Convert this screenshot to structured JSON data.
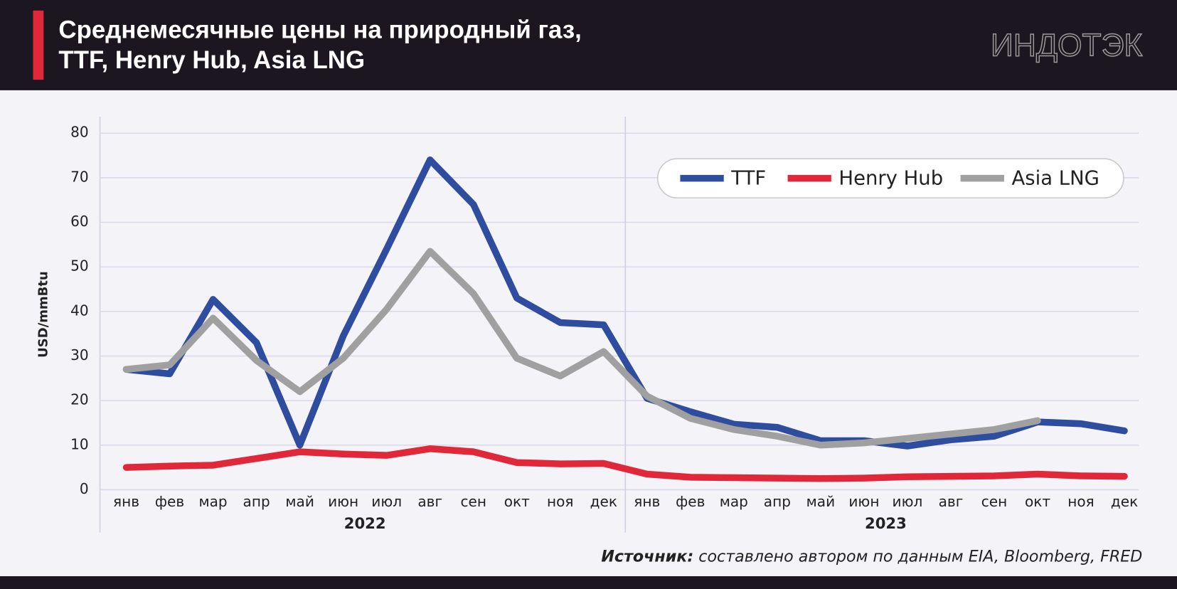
{
  "chart_data": {
    "type": "line",
    "title_lines": [
      "Среднемесячные цены на природный газ,",
      "TTF, Henry Hub, Asia LNG"
    ],
    "logo": "ИНДОТЭК",
    "y_label": "USD/mmBtu",
    "categories": [
      "янв",
      "фев",
      "мар",
      "апр",
      "май",
      "июн",
      "июл",
      "авг",
      "сен",
      "окт",
      "ноя",
      "дек",
      "янв",
      "фев",
      "мар",
      "апр",
      "май",
      "июн",
      "июл",
      "авг",
      "сен",
      "окт",
      "ноя",
      "дек"
    ],
    "groups": [
      "2022",
      "2023"
    ],
    "series": [
      {
        "name": "TTF",
        "color": "#2e4d9e",
        "values": [
          27,
          26,
          42.7,
          33,
          10,
          34.5,
          54,
          74,
          64,
          43,
          37.5,
          37,
          20.5,
          17.5,
          14.7,
          14,
          11,
          11,
          9.8,
          11.2,
          12,
          15.2,
          14.8,
          13.2
        ]
      },
      {
        "name": "Henry Hub",
        "color": "#e0283a",
        "values": [
          5,
          5.3,
          5.5,
          7,
          8.5,
          8,
          7.7,
          9.2,
          8.5,
          6.1,
          5.8,
          5.9,
          3.5,
          2.8,
          2.7,
          2.6,
          2.5,
          2.6,
          2.9,
          3,
          3.1,
          3.5,
          3.1,
          3.0
        ]
      },
      {
        "name": "Asia LNG",
        "color": "#a0a0a0",
        "values": [
          27,
          28,
          38.5,
          29,
          22,
          29.5,
          40.5,
          53.5,
          44,
          29.5,
          25.5,
          31,
          21,
          16,
          13.5,
          12,
          10,
          10.5,
          11.5,
          12.5,
          13.5,
          15.5,
          null,
          null
        ]
      }
    ],
    "ylim": [
      0,
      80
    ],
    "yticks": [
      0,
      10,
      20,
      30,
      40,
      50,
      60,
      70,
      80
    ],
    "grid": true,
    "legend": "upper right",
    "source_label": "Источник:",
    "source_text": "составлено автором по данным EIA, Bloomberg, FRED"
  }
}
